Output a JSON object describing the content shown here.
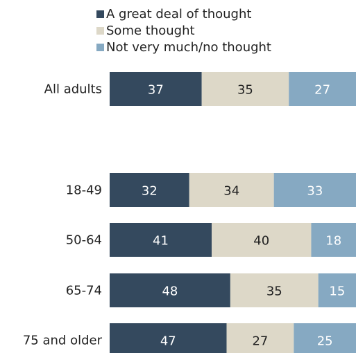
{
  "chart_data": {
    "type": "bar",
    "orientation": "horizontal",
    "stacked": true,
    "title": "",
    "xlabel": "",
    "ylabel": "",
    "xlim": [
      0,
      100
    ],
    "grid": false,
    "legend_position": "top",
    "categories": [
      "All adults",
      "18-49",
      "50-64",
      "65-74",
      "75 and older"
    ],
    "series": [
      {
        "name": "A great deal of thought",
        "color": "#34495e",
        "label_color": "#ffffff",
        "values": [
          37,
          32,
          41,
          48,
          47
        ]
      },
      {
        "name": "Some thought",
        "color": "#ddd8c8",
        "label_color": "#222222",
        "values": [
          35,
          34,
          40,
          35,
          27
        ]
      },
      {
        "name": "Not very much/no thought",
        "color": "#86a9c2",
        "label_color": "#ffffff",
        "values": [
          27,
          33,
          18,
          15,
          25
        ]
      }
    ]
  }
}
